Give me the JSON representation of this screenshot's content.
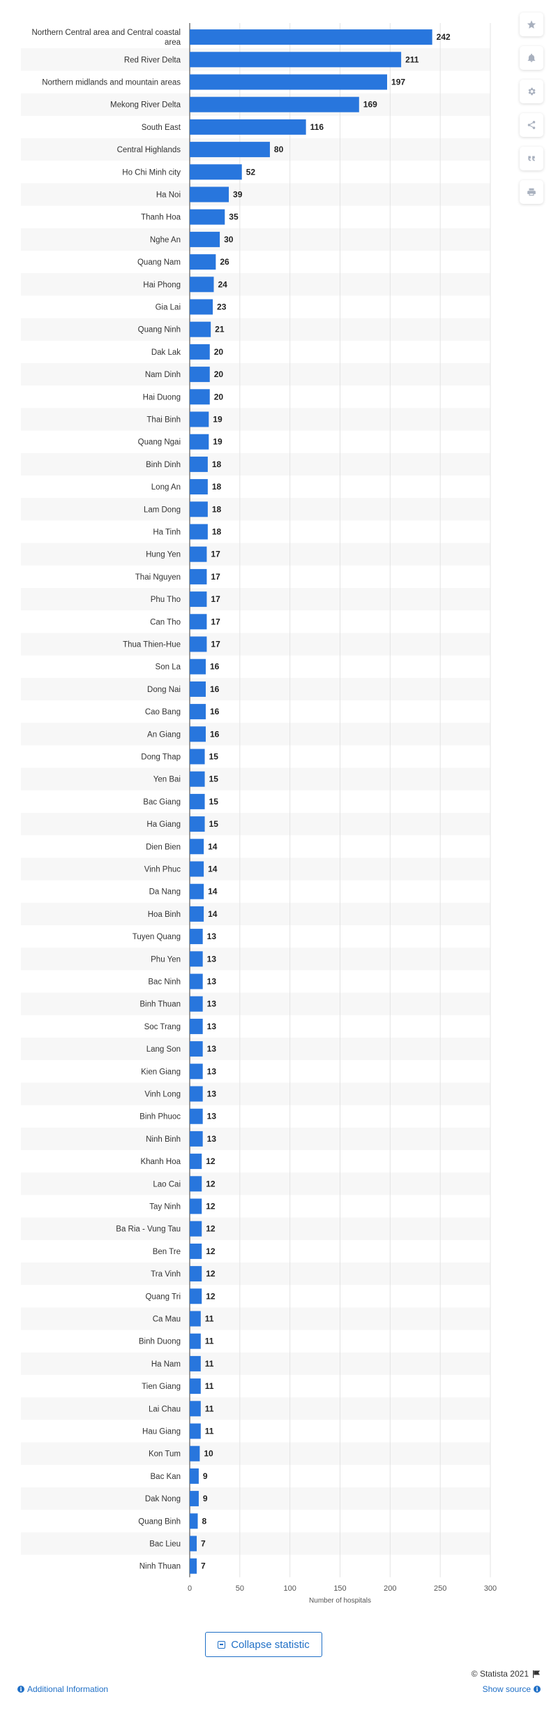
{
  "chart_data": {
    "type": "bar",
    "orientation": "horizontal",
    "categories": [
      "Northern Central area and Central coastal area",
      "Red River Delta",
      "Northern midlands and mountain areas",
      "Mekong River Delta",
      "South East",
      "Central Highlands",
      "Ho Chi Minh city",
      "Ha Noi",
      "Thanh Hoa",
      "Nghe An",
      "Quang Nam",
      "Hai Phong",
      "Gia Lai",
      "Quang Ninh",
      "Dak Lak",
      "Nam Dinh",
      "Hai Duong",
      "Thai Binh",
      "Quang Ngai",
      "Binh Dinh",
      "Long An",
      "Lam Dong",
      "Ha Tinh",
      "Hung Yen",
      "Thai Nguyen",
      "Phu Tho",
      "Can Tho",
      "Thua Thien-Hue",
      "Son La",
      "Dong Nai",
      "Cao Bang",
      "An Giang",
      "Dong Thap",
      "Yen Bai",
      "Bac Giang",
      "Ha Giang",
      "Dien Bien",
      "Vinh Phuc",
      "Da Nang",
      "Hoa Binh",
      "Tuyen Quang",
      "Phu Yen",
      "Bac Ninh",
      "Binh Thuan",
      "Soc Trang",
      "Lang Son",
      "Kien Giang",
      "Vinh Long",
      "Binh Phuoc",
      "Ninh Binh",
      "Khanh Hoa",
      "Lao Cai",
      "Tay Ninh",
      "Ba Ria - Vung Tau",
      "Ben Tre",
      "Tra Vinh",
      "Quang Tri",
      "Ca Mau",
      "Binh Duong",
      "Ha Nam",
      "Tien Giang",
      "Lai Chau",
      "Hau Giang",
      "Kon Tum",
      "Bac Kan",
      "Dak Nong",
      "Quang Binh",
      "Bac Lieu",
      "Ninh Thuan"
    ],
    "values": [
      242,
      211,
      197,
      169,
      116,
      80,
      52,
      39,
      35,
      30,
      26,
      24,
      23,
      21,
      20,
      20,
      20,
      19,
      19,
      18,
      18,
      18,
      18,
      17,
      17,
      17,
      17,
      17,
      16,
      16,
      16,
      16,
      15,
      15,
      15,
      15,
      14,
      14,
      14,
      14,
      13,
      13,
      13,
      13,
      13,
      13,
      13,
      13,
      13,
      13,
      12,
      12,
      12,
      12,
      12,
      12,
      12,
      11,
      11,
      11,
      11,
      11,
      11,
      10,
      9,
      9,
      8,
      7,
      7
    ],
    "xlabel": "Number of hospitals",
    "xlim": [
      0,
      300
    ],
    "xticks": [
      0,
      50,
      100,
      150,
      200,
      250,
      300
    ],
    "grid": true,
    "bar_color": "#2876dd"
  },
  "toolbar": {
    "icons": [
      "star-icon",
      "bell-icon",
      "gear-icon",
      "share-icon",
      "quote-icon",
      "print-icon"
    ]
  },
  "footer": {
    "collapse_label": "Collapse statistic",
    "copyright": "© Statista 2021",
    "additional_info": "Additional Information",
    "show_source": "Show source"
  },
  "colors": {
    "accent": "#1f6fc6",
    "bar": "#2876dd",
    "row_stripe": "#f7f7f7"
  }
}
